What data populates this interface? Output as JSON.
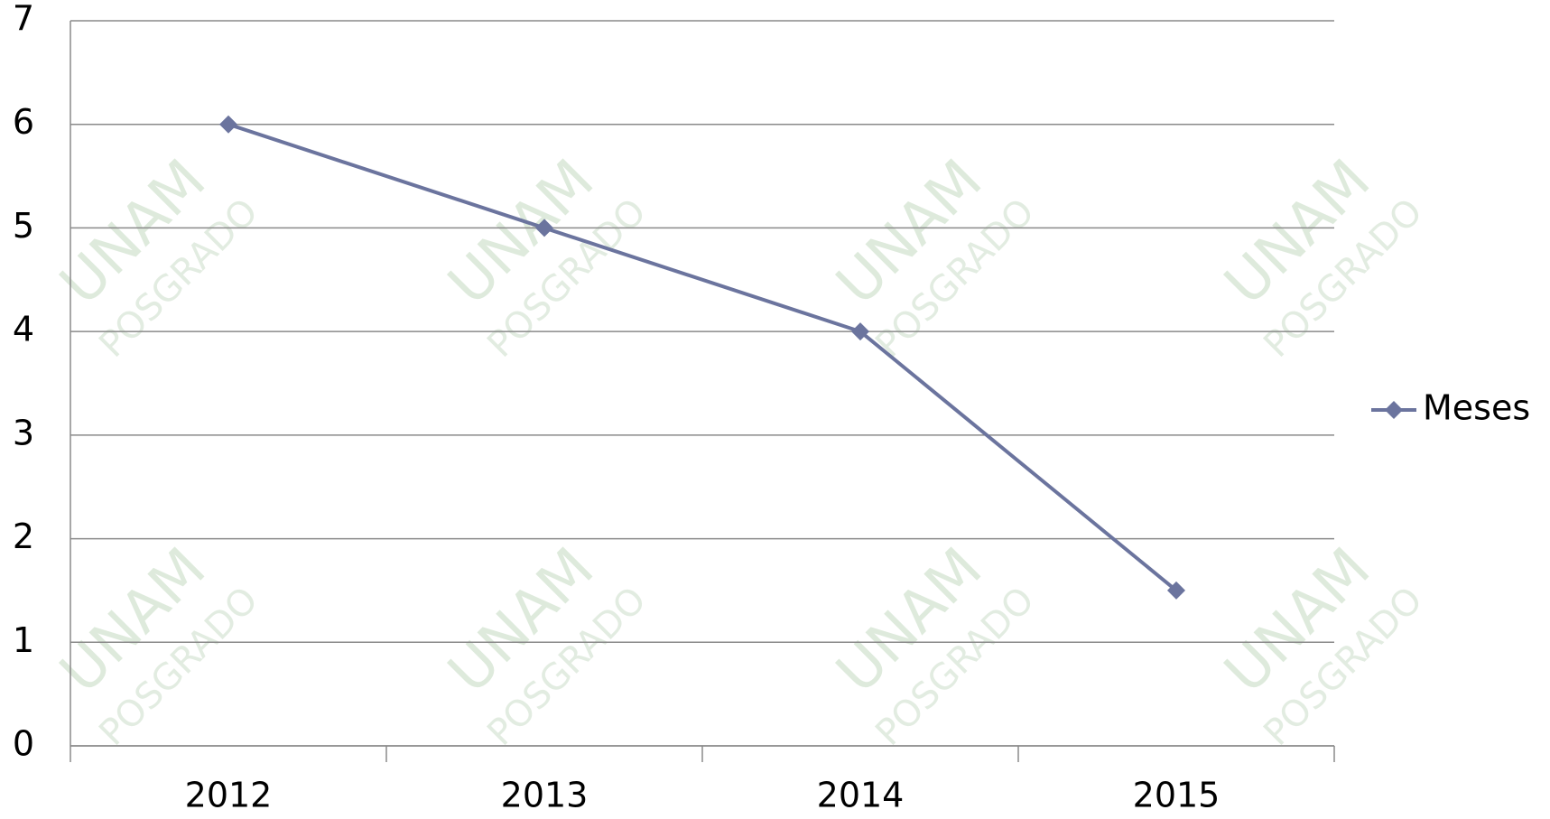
{
  "chart_data": {
    "type": "line",
    "categories": [
      "2012",
      "2013",
      "2014",
      "2015"
    ],
    "series": [
      {
        "name": "Meses",
        "color": "#6b749e",
        "values": [
          6,
          5,
          4,
          1.5
        ]
      }
    ],
    "ylim": [
      0,
      7
    ],
    "yticks": [
      0,
      1,
      2,
      3,
      4,
      5,
      6,
      7
    ],
    "grid": true,
    "legend": "right",
    "watermark": [
      "UNAM",
      "POSGRADO"
    ]
  }
}
